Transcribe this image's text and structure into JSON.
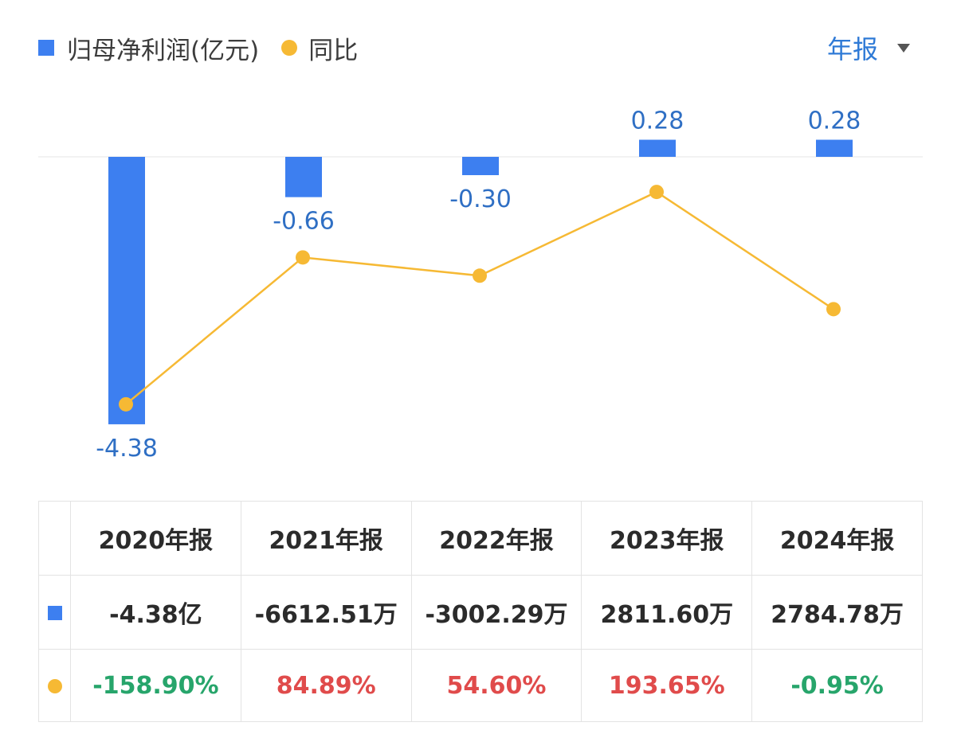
{
  "legend": {
    "series1": "归母净利润(亿元)",
    "series2": "同比"
  },
  "period_selector": {
    "label": "年报"
  },
  "colors": {
    "bar": "#3d7ff0",
    "line": "#f6b934",
    "positive_change": "#e04b4b",
    "negative_change": "#27a56b"
  },
  "chart_data": {
    "type": "bar",
    "categories": [
      "2020年报",
      "2021年报",
      "2022年报",
      "2023年报",
      "2024年报"
    ],
    "series": [
      {
        "name": "归母净利润(亿元)",
        "type": "bar",
        "values": [
          -4.38,
          -0.66,
          -0.3,
          0.28,
          0.28
        ],
        "labels": [
          "-4.38",
          "-0.66",
          "-0.30",
          "0.28",
          "0.28"
        ]
      },
      {
        "name": "同比",
        "type": "line",
        "values": [
          -158.9,
          84.89,
          54.6,
          193.65,
          -0.95
        ]
      }
    ]
  },
  "table": {
    "headers": [
      "2020年报",
      "2021年报",
      "2022年报",
      "2023年报",
      "2024年报"
    ],
    "profit_values": [
      "-4.38亿",
      "-6612.51万",
      "-3002.29万",
      "2811.60万",
      "2784.78万"
    ],
    "yoy_values": [
      "-158.90%",
      "84.89%",
      "54.60%",
      "193.65%",
      "-0.95%"
    ]
  }
}
